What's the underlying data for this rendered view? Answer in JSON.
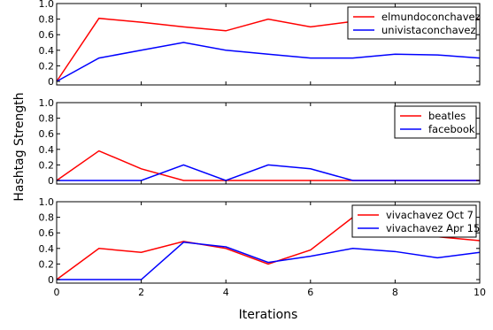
{
  "chart_data": {
    "type": "line",
    "shared_xlabel": "Iterations",
    "shared_ylabel": "Hashtag Strength",
    "xlim": [
      0,
      10
    ],
    "x_ticks": [
      0,
      2,
      4,
      6,
      8,
      10
    ],
    "ylim": [
      0,
      1
    ],
    "y_ticks": [
      0,
      0.2,
      0.4,
      0.6,
      0.8,
      1.0
    ],
    "y_tick_labels": [
      "0",
      "0.2",
      "0.4",
      "0.6",
      "0.8",
      "1.0"
    ],
    "grid": false,
    "legend_position": "upper-right",
    "x": [
      0,
      1,
      2,
      3,
      4,
      5,
      6,
      7,
      8,
      9,
      10
    ],
    "panels": [
      {
        "name": "top",
        "series": [
          {
            "name": "elmundoconchavez",
            "color": "#ff0000",
            "values": [
              0.0,
              0.81,
              0.76,
              0.7,
              0.65,
              0.8,
              0.7,
              0.77,
              0.8,
              0.79,
              0.8
            ]
          },
          {
            "name": "univistaconchavez",
            "color": "#0000ff",
            "values": [
              0.0,
              0.3,
              0.4,
              0.5,
              0.4,
              0.35,
              0.3,
              0.3,
              0.35,
              0.34,
              0.3
            ]
          }
        ]
      },
      {
        "name": "middle",
        "series": [
          {
            "name": "beatles",
            "color": "#ff0000",
            "values": [
              0.0,
              0.38,
              0.15,
              0.0,
              0.0,
              0.0,
              0.0,
              0.0,
              0.0,
              0.0,
              0.0
            ]
          },
          {
            "name": "facebook",
            "color": "#0000ff",
            "values": [
              0.0,
              0.0,
              0.0,
              0.2,
              0.0,
              0.2,
              0.15,
              0.0,
              0.0,
              0.0,
              0.0
            ]
          }
        ]
      },
      {
        "name": "bottom",
        "series": [
          {
            "name": "vivachavez Oct 7",
            "color": "#ff0000",
            "values": [
              0.0,
              0.4,
              0.35,
              0.49,
              0.4,
              0.2,
              0.38,
              0.8,
              0.6,
              0.55,
              0.5
            ]
          },
          {
            "name": "vivachavez Apr 15",
            "color": "#0000ff",
            "values": [
              0.0,
              0.0,
              0.0,
              0.48,
              0.42,
              0.22,
              0.3,
              0.4,
              0.36,
              0.28,
              0.35
            ]
          }
        ]
      }
    ]
  }
}
